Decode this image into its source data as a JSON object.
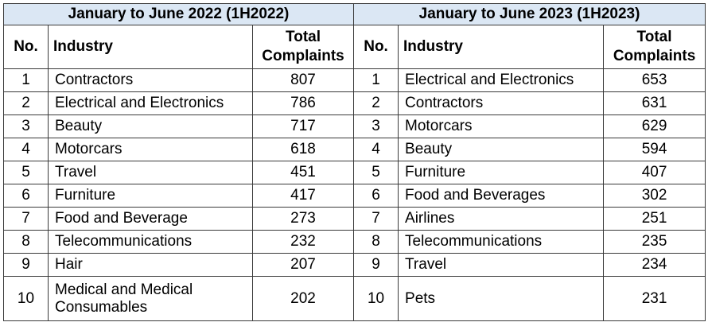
{
  "left": {
    "period": "January to June 2022 (1H2022)",
    "headers": {
      "no": "No.",
      "industry": "Industry",
      "total": "Total Complaints"
    },
    "rows": [
      {
        "no": "1",
        "industry": "Contractors",
        "total": "807"
      },
      {
        "no": "2",
        "industry": "Electrical and Electronics",
        "total": "786"
      },
      {
        "no": "3",
        "industry": "Beauty",
        "total": "717"
      },
      {
        "no": "4",
        "industry": "Motorcars",
        "total": "618"
      },
      {
        "no": "5",
        "industry": "Travel",
        "total": "451"
      },
      {
        "no": "6",
        "industry": "Furniture",
        "total": "417"
      },
      {
        "no": "7",
        "industry": "Food and Beverage",
        "total": "273"
      },
      {
        "no": "8",
        "industry": "Telecommunications",
        "total": "232"
      },
      {
        "no": "9",
        "industry": "Hair",
        "total": "207"
      },
      {
        "no": "10",
        "industry": "Medical and Medical Consumables",
        "total": "202"
      }
    ]
  },
  "right": {
    "period": "January to June 2023 (1H2023)",
    "headers": {
      "no": "No.",
      "industry": "Industry",
      "total": "Total Complaints"
    },
    "rows": [
      {
        "no": "1",
        "industry": "Electrical and Electronics",
        "total": "653"
      },
      {
        "no": "2",
        "industry": "Contractors",
        "total": "631"
      },
      {
        "no": "3",
        "industry": "Motorcars",
        "total": "629"
      },
      {
        "no": "4",
        "industry": "Beauty",
        "total": "594"
      },
      {
        "no": "5",
        "industry": "Furniture",
        "total": "407"
      },
      {
        "no": "6",
        "industry": "Food and Beverages",
        "total": "302"
      },
      {
        "no": "7",
        "industry": "Airlines",
        "total": "251"
      },
      {
        "no": "8",
        "industry": "Telecommunications",
        "total": "235"
      },
      {
        "no": "9",
        "industry": "Travel",
        "total": "234"
      },
      {
        "no": "10",
        "industry": "Pets",
        "total": "231"
      }
    ]
  },
  "colors": {
    "header_band": "#dbe7f4",
    "border": "#3a3a3a"
  }
}
